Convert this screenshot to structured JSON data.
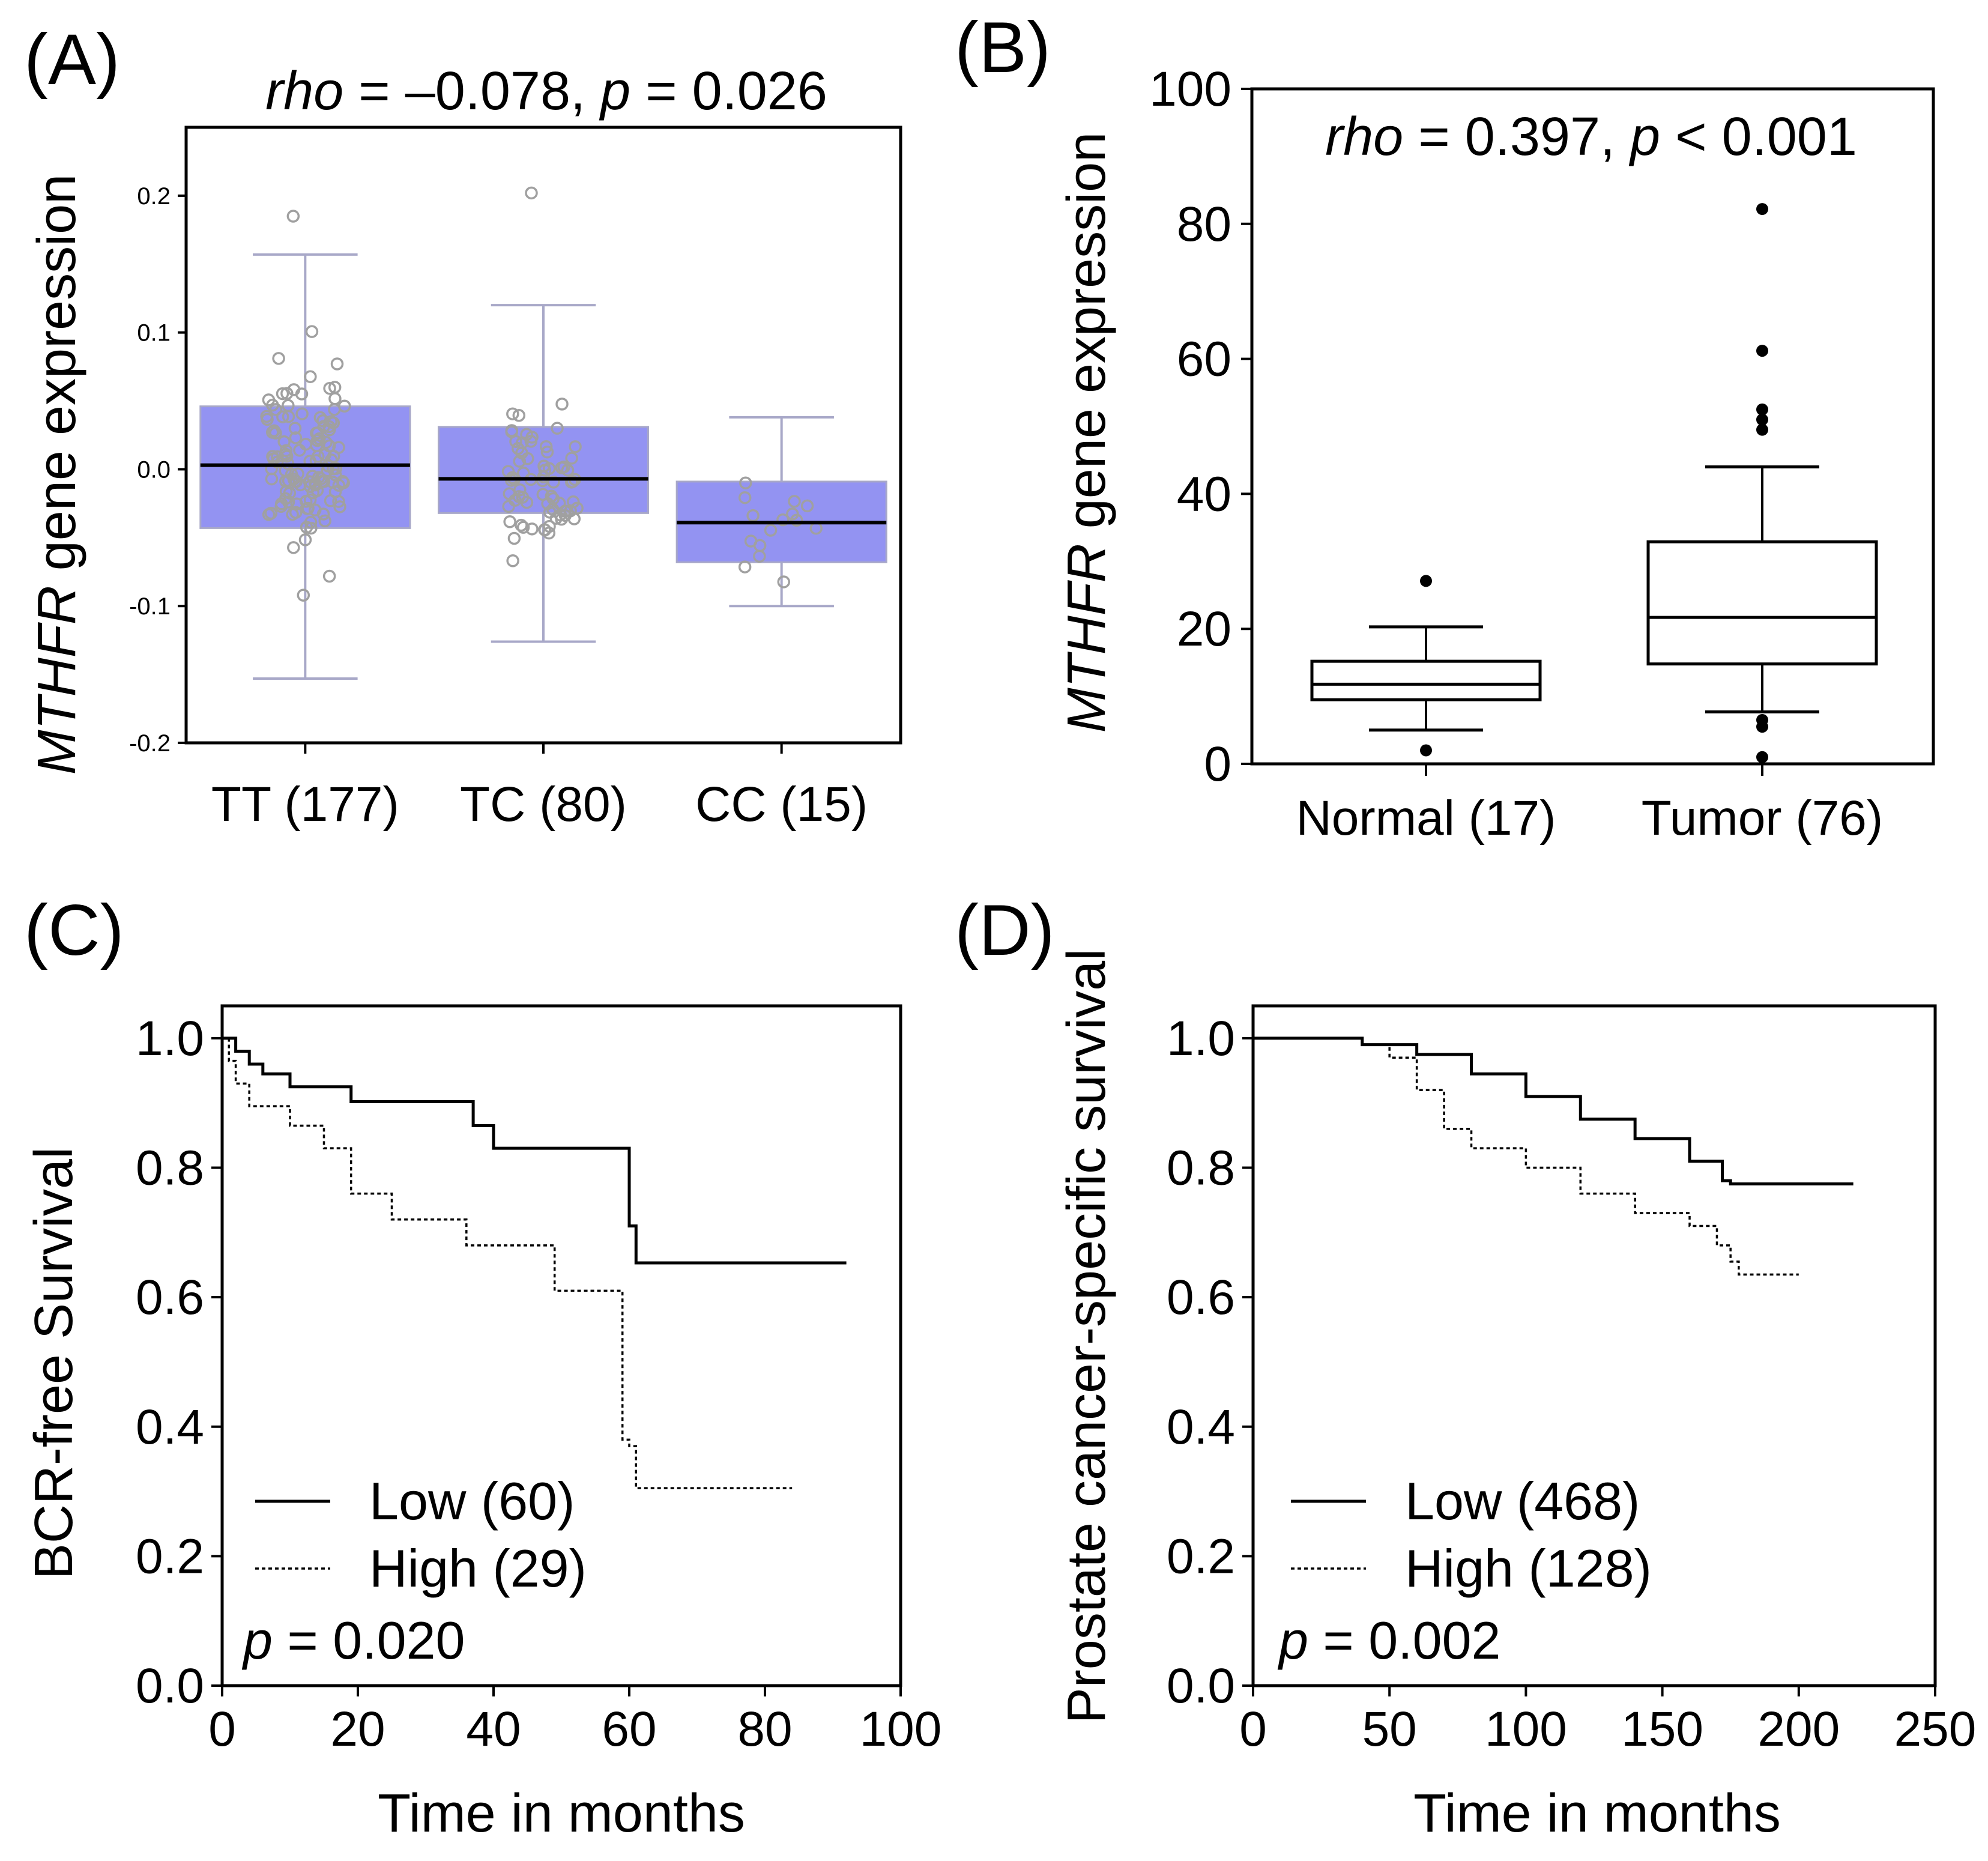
{
  "chart_data": [
    {
      "panel": "(A)",
      "type": "box",
      "title": "rho = –0.078, p = 0.026",
      "stat": {
        "rho_label": "rho",
        "rho_text": " = –0.078, ",
        "p_label": "p",
        "p_text": " = 0.026"
      },
      "ylabel": {
        "gene": "MTHFR",
        "rest": " gene expression"
      },
      "ylim": [
        -0.2,
        0.25
      ],
      "yticks": [
        -0.2,
        -0.1,
        0.0,
        0.1,
        0.2
      ],
      "ytick_labels": [
        "-0.2",
        "-0.1",
        "0.0",
        "0.1",
        "0.2"
      ],
      "categories": [
        "TT (177)",
        "TC (80)",
        "CC (15)"
      ],
      "boxes": [
        {
          "q1": -0.043,
          "median": 0.003,
          "q3": 0.046,
          "whisker_low": -0.153,
          "whisker_high": 0.157,
          "n": 177,
          "point_count": 120
        },
        {
          "q1": -0.032,
          "median": -0.007,
          "q3": 0.031,
          "whisker_low": -0.126,
          "whisker_high": 0.12,
          "n": 80,
          "point_count": 70
        },
        {
          "q1": -0.068,
          "median": -0.039,
          "q3": -0.009,
          "whisker_low": -0.1,
          "whisker_high": 0.038,
          "n": 15,
          "point_count": 15
        }
      ],
      "outliers": [
        {
          "group": 0,
          "value": 0.185
        },
        {
          "group": 1,
          "value": 0.202
        }
      ],
      "colors": {
        "box": "#8080f0",
        "box_edge": "#a8a8c8",
        "points": "#a0a0a0",
        "median": "#000000"
      }
    },
    {
      "panel": "(B)",
      "type": "box",
      "stat": {
        "rho_label": "rho",
        "rho_text": " = 0.397, ",
        "p_label": "p",
        "p_text": " < 0.001"
      },
      "ylabel": {
        "gene": "MTHFR",
        "rest": " gene expression"
      },
      "ylim": [
        0,
        100
      ],
      "yticks": [
        0,
        20,
        40,
        60,
        80,
        100
      ],
      "ytick_labels": [
        "0",
        "20",
        "40",
        "60",
        "80",
        "100"
      ],
      "categories": [
        "Normal (17)",
        "Tumor (76)"
      ],
      "boxes": [
        {
          "q1": 9.5,
          "median": 11.8,
          "q3": 15.2,
          "whisker_low": 5.0,
          "whisker_high": 20.3
        },
        {
          "q1": 14.8,
          "median": 21.7,
          "q3": 32.9,
          "whisker_low": 7.7,
          "whisker_high": 44.0
        }
      ],
      "outliers": [
        {
          "group": 0,
          "value": 27.1
        },
        {
          "group": 0,
          "value": 2.0
        },
        {
          "group": 1,
          "value": 82.2
        },
        {
          "group": 1,
          "value": 61.2
        },
        {
          "group": 1,
          "value": 52.5
        },
        {
          "group": 1,
          "value": 51.0
        },
        {
          "group": 1,
          "value": 49.5
        },
        {
          "group": 1,
          "value": 6.5
        },
        {
          "group": 1,
          "value": 5.5
        },
        {
          "group": 1,
          "value": 1.0
        }
      ]
    },
    {
      "panel": "(C)",
      "type": "line",
      "subtype": "kaplan-meier",
      "xlabel": "Time in months",
      "ylabel": "BCR-free Survival",
      "xlim": [
        0,
        100
      ],
      "ylim": [
        0,
        1.05
      ],
      "xticks": [
        0,
        20,
        40,
        60,
        80,
        100
      ],
      "yticks": [
        0.0,
        0.2,
        0.4,
        0.6,
        0.8,
        1.0
      ],
      "ytick_labels": [
        "0.0",
        "0.2",
        "0.4",
        "0.6",
        "0.8",
        "1.0"
      ],
      "p_label": "p",
      "p_text": " = 0.020",
      "series": [
        {
          "name": "Low (60)",
          "style": "solid",
          "x": [
            0,
            2,
            4,
            6,
            10,
            19,
            37,
            40,
            60,
            61,
            92
          ],
          "y": [
            1.0,
            0.98,
            0.96,
            0.945,
            0.925,
            0.902,
            0.865,
            0.83,
            0.71,
            0.653,
            0.653
          ]
        },
        {
          "name": "High (29)",
          "style": "dotted",
          "x": [
            0,
            1,
            2,
            4,
            10,
            15,
            19,
            25,
            36,
            49,
            59,
            60,
            61,
            84
          ],
          "y": [
            1.0,
            0.965,
            0.93,
            0.895,
            0.865,
            0.83,
            0.76,
            0.72,
            0.68,
            0.61,
            0.38,
            0.37,
            0.305,
            0.305
          ]
        }
      ]
    },
    {
      "panel": "(D)",
      "type": "line",
      "subtype": "kaplan-meier",
      "xlabel": "Time in months",
      "ylabel": "Prostate cancer-specific survival",
      "xlim": [
        0,
        250
      ],
      "ylim": [
        0,
        1.05
      ],
      "xticks": [
        0,
        50,
        100,
        150,
        200,
        250
      ],
      "yticks": [
        0.0,
        0.2,
        0.4,
        0.6,
        0.8,
        1.0
      ],
      "ytick_labels": [
        "0.0",
        "0.2",
        "0.4",
        "0.6",
        "0.8",
        "1.0"
      ],
      "p_label": "p",
      "p_text": " = 0.002",
      "series": [
        {
          "name": "Low (468)",
          "style": "solid",
          "x": [
            0,
            25,
            40,
            60,
            80,
            100,
            120,
            140,
            160,
            172,
            175,
            220
          ],
          "y": [
            1.0,
            1.0,
            0.99,
            0.975,
            0.945,
            0.91,
            0.875,
            0.845,
            0.81,
            0.78,
            0.775,
            0.775
          ]
        },
        {
          "name": "High (128)",
          "style": "dotted",
          "x": [
            0,
            20,
            40,
            50,
            60,
            70,
            80,
            100,
            120,
            140,
            160,
            170,
            175,
            178,
            200
          ],
          "y": [
            1.0,
            1.0,
            0.99,
            0.97,
            0.92,
            0.86,
            0.83,
            0.8,
            0.76,
            0.73,
            0.71,
            0.68,
            0.655,
            0.635,
            0.635
          ]
        }
      ]
    }
  ]
}
